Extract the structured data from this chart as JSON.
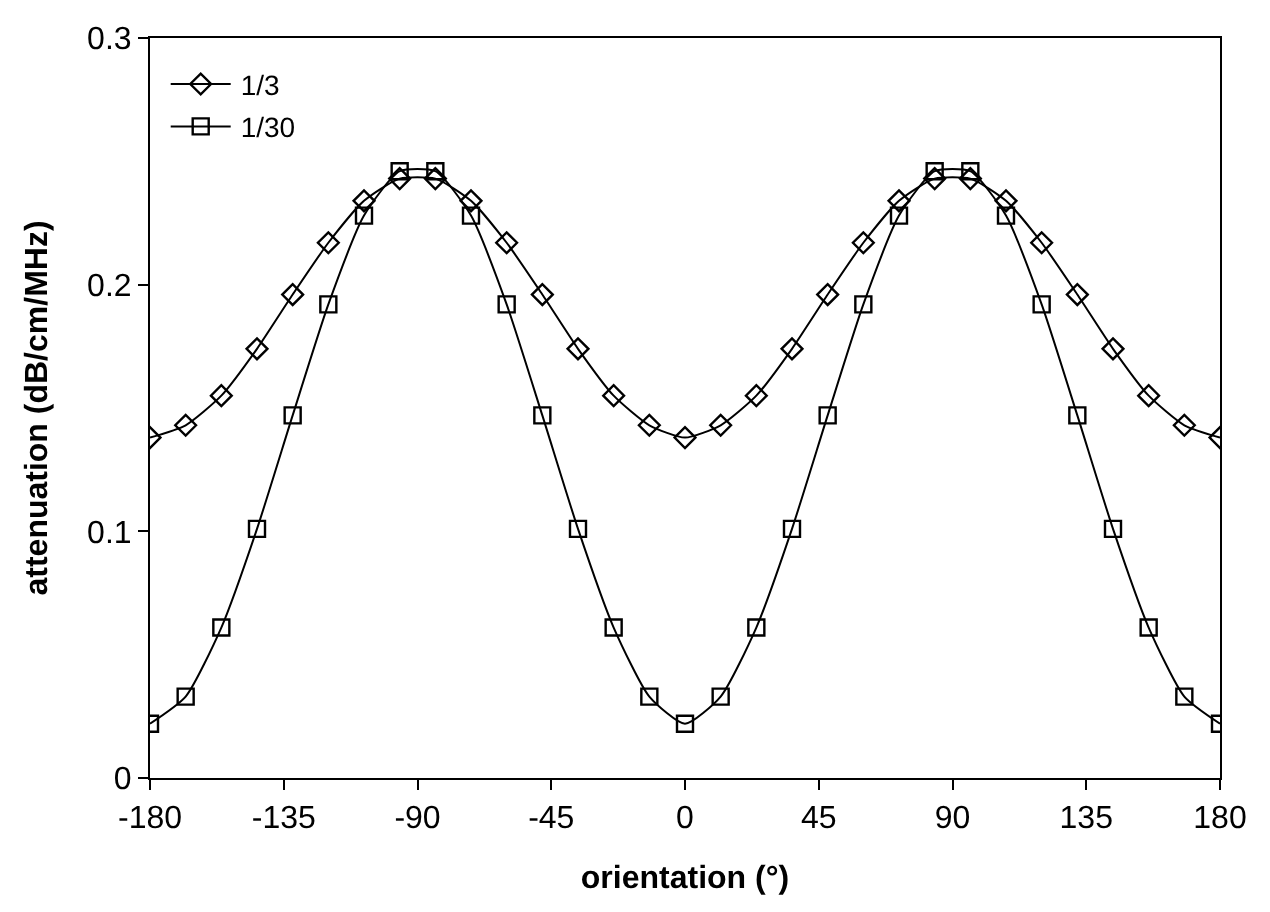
{
  "chart_data": {
    "type": "line",
    "xlabel": "orientation (°)",
    "ylabel": "attenuation (dB/cm/MHz)",
    "x": [
      -180,
      -168,
      -156,
      -144,
      -132,
      -120,
      -108,
      -96,
      -84,
      -72,
      -60,
      -48,
      -36,
      -24,
      -12,
      0,
      12,
      24,
      36,
      48,
      60,
      72,
      84,
      96,
      108,
      120,
      132,
      144,
      156,
      168,
      180
    ],
    "series": [
      {
        "name": "1/3",
        "color": "#000000",
        "marker": "diamond",
        "values": [
          0.138,
          0.143,
          0.155,
          0.174,
          0.196,
          0.217,
          0.234,
          0.243,
          0.243,
          0.234,
          0.217,
          0.196,
          0.174,
          0.155,
          0.143,
          0.138,
          0.143,
          0.155,
          0.174,
          0.196,
          0.217,
          0.234,
          0.243,
          0.243,
          0.234,
          0.217,
          0.196,
          0.174,
          0.155,
          0.143,
          0.138
        ]
      },
      {
        "name": "1/30",
        "color": "#000000",
        "marker": "square",
        "values": [
          0.022,
          0.033,
          0.061,
          0.101,
          0.147,
          0.192,
          0.228,
          0.246,
          0.246,
          0.228,
          0.192,
          0.147,
          0.101,
          0.061,
          0.033,
          0.022,
          0.033,
          0.061,
          0.101,
          0.147,
          0.192,
          0.228,
          0.246,
          0.246,
          0.228,
          0.192,
          0.147,
          0.101,
          0.061,
          0.033,
          0.022
        ]
      }
    ],
    "xlim": [
      -180,
      180
    ],
    "xticks": [
      -180,
      -135,
      -90,
      -45,
      0,
      45,
      90,
      135,
      180
    ],
    "ylim": [
      0,
      0.3
    ],
    "yticks": [
      0,
      0.1,
      0.2,
      0.3
    ],
    "legend": "top left",
    "line_style": "solid"
  }
}
